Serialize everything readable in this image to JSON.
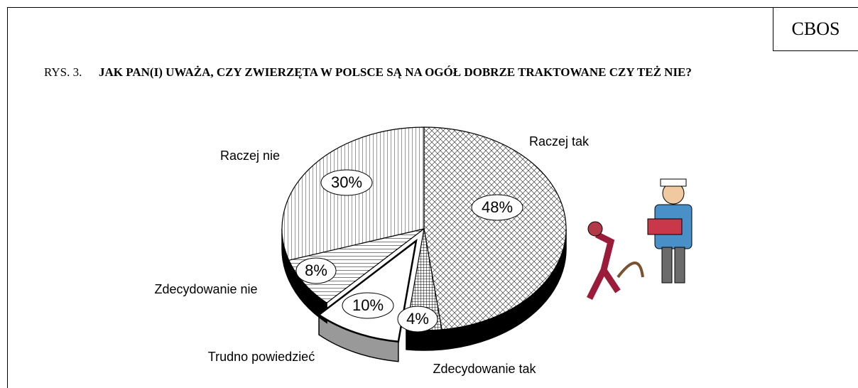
{
  "chart_data": {
    "type": "pie",
    "source": "CBOS",
    "figure": "RYS. 3.",
    "title": "JAK PAN(I) UWAŻA, CZY ZWIERZĘTA W POLSCE SĄ NA OGÓŁ DOBRZE TRAKTOWANE CZY TEŻ NIE?",
    "categories": [
      "Raczej tak",
      "Zdecydowanie tak",
      "Trudno powiedzieć",
      "Zdecydowanie nie",
      "Raczej nie"
    ],
    "values": [
      48,
      4,
      10,
      8,
      30
    ],
    "value_labels": [
      "48%",
      "4%",
      "10%",
      "8%",
      "30%"
    ]
  }
}
